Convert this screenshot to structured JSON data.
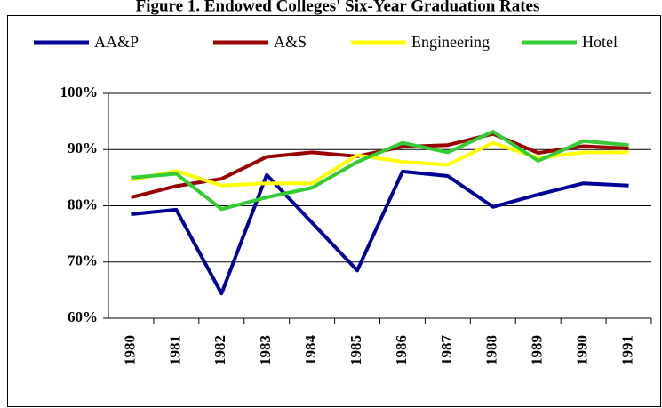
{
  "chart_data": {
    "type": "line",
    "title": "Figure 1. Endowed Colleges' Six-Year Graduation Rates",
    "categories": [
      "1980",
      "1981",
      "1982",
      "1983",
      "1984",
      "1985",
      "1986",
      "1987",
      "1988",
      "1989",
      "1990",
      "1991"
    ],
    "series": [
      {
        "name": "AA&P",
        "color": "#000099",
        "values": [
          78.5,
          79.3,
          64.4,
          85.5,
          77,
          68.5,
          86.1,
          85.3,
          79.8,
          82,
          84,
          83.6
        ]
      },
      {
        "name": "A&S",
        "color": "#990000",
        "values": [
          81.5,
          83.5,
          84.8,
          88.7,
          89.5,
          88.8,
          90.5,
          90.8,
          92.8,
          89.4,
          90.6,
          90.2
        ]
      },
      {
        "name": "Engineering",
        "color": "#ffff00",
        "values": [
          84.6,
          86.2,
          83.6,
          84,
          84,
          89,
          87.8,
          87.3,
          91.2,
          88.5,
          89.5,
          89.5
        ]
      },
      {
        "name": "Hotel",
        "color": "#33cc33",
        "values": [
          85,
          85.7,
          79.4,
          81.5,
          83.2,
          87.8,
          91.2,
          89.5,
          93.2,
          88,
          91.5,
          90.8
        ]
      }
    ],
    "ylim": [
      60,
      100
    ],
    "yticks": [
      {
        "value": 60,
        "label": "60%"
      },
      {
        "value": 70,
        "label": "70%"
      },
      {
        "value": 80,
        "label": "80%"
      },
      {
        "value": 90,
        "label": "90%"
      },
      {
        "value": 100,
        "label": "100%"
      }
    ],
    "grid": true,
    "legend": "top"
  }
}
